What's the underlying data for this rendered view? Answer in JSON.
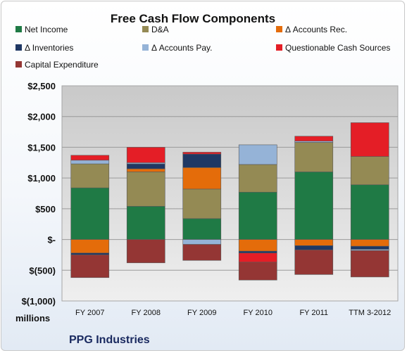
{
  "chart_data": {
    "type": "bar",
    "stacked": true,
    "title": "Free Cash Flow Components",
    "unit_label": "millions",
    "company": "PPG Industries",
    "categories": [
      "FY 2007",
      "FY 2008",
      "FY 2009",
      "FY 2010",
      "FY 2011",
      "TTM 3-2012"
    ],
    "y_ticks": [
      "$2,500",
      "$2,000",
      "$1,500",
      "$1,000",
      "$500",
      "$-",
      "$(500)",
      "$(1,000)"
    ],
    "ylim": [
      -1000,
      2500
    ],
    "grid": true,
    "legend_position": "top",
    "series": [
      {
        "name": "Net Income",
        "color": "#1f7a45",
        "values": [
          840,
          540,
          340,
          770,
          1100,
          890
        ]
      },
      {
        "name": "D&A",
        "color": "#948a54",
        "values": [
          390,
          560,
          480,
          450,
          480,
          460
        ]
      },
      {
        "name": "Δ Accounts Rec.",
        "color": "#e46c0a",
        "values": [
          -220,
          50,
          350,
          -190,
          -100,
          -110
        ]
      },
      {
        "name": "Δ Inventories",
        "color": "#1f3864",
        "values": [
          -30,
          80,
          220,
          -30,
          -70,
          -50
        ]
      },
      {
        "name": "Δ Accounts Pay.",
        "color": "#95b3d7",
        "values": [
          60,
          20,
          -80,
          320,
          20,
          -20
        ]
      },
      {
        "name": "Questionable Cash Sources",
        "color": "#e41e26",
        "values": [
          80,
          250,
          30,
          -150,
          80,
          550
        ]
      },
      {
        "name": "Capital Expenditure",
        "color": "#943634",
        "values": [
          -370,
          -380,
          -260,
          -290,
          -400,
          -430
        ]
      }
    ]
  }
}
